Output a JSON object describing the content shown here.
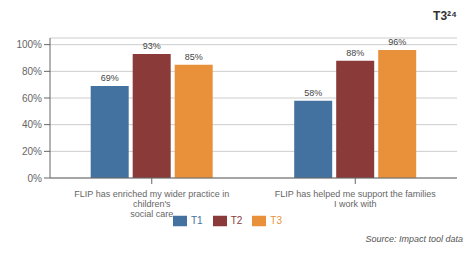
{
  "chart_data": {
    "type": "bar",
    "title": "T3²⁴",
    "categories": [
      "FLIP has enriched my wider practice in children's\nsocial care",
      "FLIP has helped me support the families I work with"
    ],
    "series": [
      {
        "name": "T1",
        "color": "#4472A0",
        "values": [
          69,
          58
        ],
        "value_labels": [
          "69%",
          "58%"
        ]
      },
      {
        "name": "T2",
        "color": "#8B3A3A",
        "values": [
          93,
          88
        ],
        "value_labels": [
          "93%",
          "88%"
        ]
      },
      {
        "name": "T3",
        "color": "#E8913A",
        "values": [
          85,
          96
        ],
        "value_labels": [
          "85%",
          "96%"
        ]
      }
    ],
    "ylim": [
      0,
      105
    ],
    "yticks": [
      {
        "value": 0,
        "label": "0%"
      },
      {
        "value": 20,
        "label": "20%"
      },
      {
        "value": 40,
        "label": "40%"
      },
      {
        "value": 60,
        "label": "60%"
      },
      {
        "value": 80,
        "label": "80%"
      },
      {
        "value": 100,
        "label": "100%"
      }
    ],
    "grid": true,
    "legend": "bottom",
    "data_labels": true,
    "annotations": [
      "Source: Impact tool data"
    ]
  }
}
